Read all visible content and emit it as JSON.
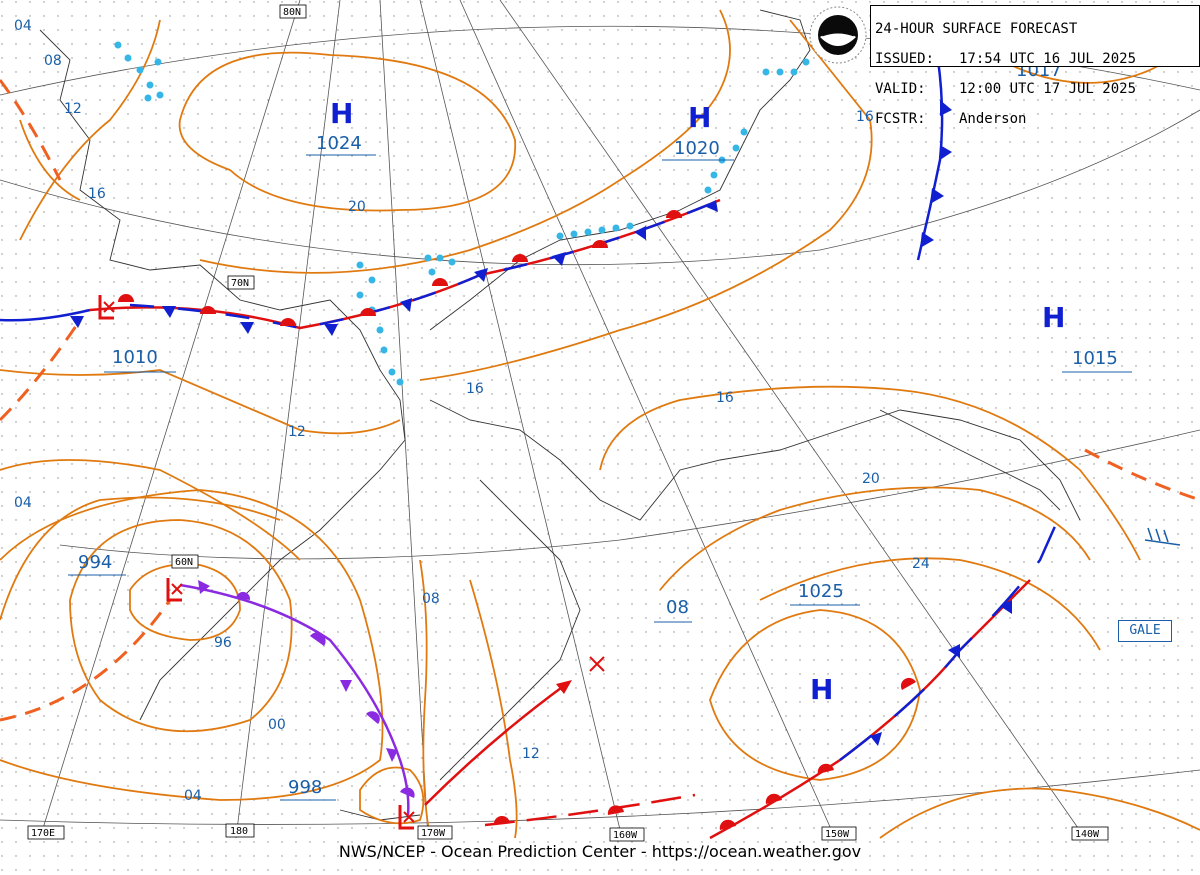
{
  "header": {
    "title": "24-HOUR SURFACE FORECAST",
    "issued_label": "ISSUED:",
    "issued": "17:54 UTC 16 JUL 2025",
    "valid_label": "VALID:",
    "valid": "12:00 UTC 17 JUL 2025",
    "fcstr_label": "FCSTR:",
    "fcstr": "Anderson"
  },
  "footer": "NWS/NCEP - Ocean Prediction Center - https://ocean.weather.gov",
  "gale_label": "GALE",
  "pressure_centers": {
    "h1_letter": "H",
    "h1_value": "1024",
    "h2_letter": "H",
    "h2_value": "1020",
    "h3_letter": "H",
    "h3_value": "1015",
    "h4_letter": "H",
    "h4_value": "1025",
    "l1_value": "1010",
    "l2_value": "994",
    "l3_value": "998",
    "top_right_value": "1017",
    "low_08_value": "08"
  },
  "isobar_labels": {
    "a": "04",
    "b": "08",
    "c": "12",
    "d": "16",
    "e": "20",
    "f": "16",
    "g": "16",
    "h": "12",
    "i": "16",
    "j": "04",
    "k": "20",
    "l": "24",
    "m": "08",
    "n": "96",
    "o": "00",
    "p": "12",
    "q": "04"
  },
  "grid_labels": {
    "lat80": "80N",
    "lat70": "70N",
    "lat60": "60N",
    "lon170e": "170E",
    "lon180": "180",
    "lon170w": "170W",
    "lon160w": "160W",
    "lon150w": "150W",
    "lon140w": "140W"
  },
  "colors": {
    "isobar": "#e07a10",
    "label": "#1a5fa8",
    "cold_front": "#1020d0",
    "warm_front": "#e01010",
    "occluded": "#8a2be2",
    "trough": "#f06020",
    "ice": "#35b6e6"
  }
}
